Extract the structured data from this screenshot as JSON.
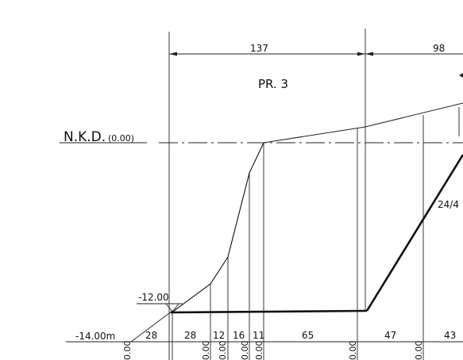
{
  "drawing": {
    "profile_label": "PR. 3",
    "reference_level": {
      "label": "N.K.D.",
      "value": "(0.00)"
    },
    "levels": {
      "mid": "-12.00",
      "bottom": "-14.00m"
    },
    "top_dimensions": [
      "137",
      "98"
    ],
    "side_slope_label": "24/4",
    "bottom_dimensions": [
      "28",
      "28",
      "12",
      "16",
      "11",
      "65",
      "47",
      "43"
    ],
    "bottom_zero_labels": [
      "0.00",
      "0.00",
      "0.00",
      "0.00",
      "0.00",
      "0.00",
      "0.00"
    ]
  }
}
